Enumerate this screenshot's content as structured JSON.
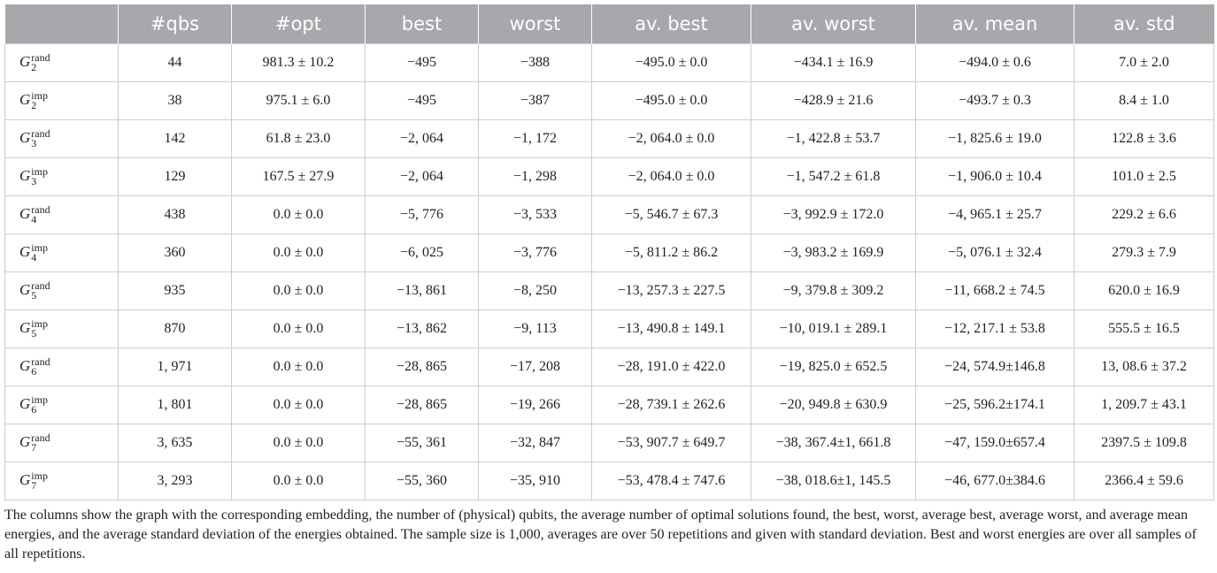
{
  "table": {
    "header": [
      "#qbs",
      "#opt",
      "best",
      "worst",
      "av. best",
      "av. worst",
      "av. mean",
      "av. std"
    ],
    "rows": [
      {
        "graph": {
          "base": "G",
          "sub": "2",
          "sup": "rand"
        },
        "cells": [
          "44",
          "981.3 ± 10.2",
          "−495",
          "−388",
          "−495.0 ± 0.0",
          "−434.1 ± 16.9",
          "−494.0 ± 0.6",
          "7.0 ± 2.0"
        ]
      },
      {
        "graph": {
          "base": "G",
          "sub": "2",
          "sup": "imp"
        },
        "cells": [
          "38",
          "975.1 ± 6.0",
          "−495",
          "−387",
          "−495.0 ± 0.0",
          "−428.9 ± 21.6",
          "−493.7 ± 0.3",
          "8.4 ± 1.0"
        ]
      },
      {
        "graph": {
          "base": "G",
          "sub": "3",
          "sup": "rand"
        },
        "cells": [
          "142",
          "61.8 ± 23.0",
          "−2, 064",
          "−1, 172",
          "−2, 064.0 ± 0.0",
          "−1, 422.8 ± 53.7",
          "−1, 825.6 ± 19.0",
          "122.8 ± 3.6"
        ]
      },
      {
        "graph": {
          "base": "G",
          "sub": "3",
          "sup": "imp"
        },
        "cells": [
          "129",
          "167.5 ± 27.9",
          "−2, 064",
          "−1, 298",
          "−2, 064.0 ± 0.0",
          "−1, 547.2 ± 61.8",
          "−1, 906.0 ± 10.4",
          "101.0 ± 2.5"
        ]
      },
      {
        "graph": {
          "base": "G",
          "sub": "4",
          "sup": "rand"
        },
        "cells": [
          "438",
          "0.0 ± 0.0",
          "−5, 776",
          "−3, 533",
          "−5, 546.7 ± 67.3",
          "−3, 992.9 ± 172.0",
          "−4, 965.1 ± 25.7",
          "229.2 ± 6.6"
        ]
      },
      {
        "graph": {
          "base": "G",
          "sub": "4",
          "sup": "imp"
        },
        "cells": [
          "360",
          "0.0 ± 0.0",
          "−6, 025",
          "−3, 776",
          "−5, 811.2 ± 86.2",
          "−3, 983.2 ± 169.9",
          "−5, 076.1 ± 32.4",
          "279.3 ± 7.9"
        ]
      },
      {
        "graph": {
          "base": "G",
          "sub": "5",
          "sup": "rand"
        },
        "cells": [
          "935",
          "0.0 ± 0.0",
          "−13, 861",
          "−8, 250",
          "−13, 257.3 ± 227.5",
          "−9, 379.8 ± 309.2",
          "−11, 668.2 ± 74.5",
          "620.0 ± 16.9"
        ]
      },
      {
        "graph": {
          "base": "G",
          "sub": "5",
          "sup": "imp"
        },
        "cells": [
          "870",
          "0.0 ± 0.0",
          "−13, 862",
          "−9, 113",
          "−13, 490.8 ± 149.1",
          "−10, 019.1 ± 289.1",
          "−12, 217.1 ± 53.8",
          "555.5 ± 16.5"
        ]
      },
      {
        "graph": {
          "base": "G",
          "sub": "6",
          "sup": "rand"
        },
        "cells": [
          "1, 971",
          "0.0 ± 0.0",
          "−28, 865",
          "−17, 208",
          "−28, 191.0 ± 422.0",
          "−19, 825.0 ± 652.5",
          "−24, 574.9±146.8",
          "13, 08.6 ± 37.2"
        ]
      },
      {
        "graph": {
          "base": "G",
          "sub": "6",
          "sup": "imp"
        },
        "cells": [
          "1, 801",
          "0.0 ± 0.0",
          "−28, 865",
          "−19, 266",
          "−28, 739.1 ± 262.6",
          "−20, 949.8 ± 630.9",
          "−25, 596.2±174.1",
          "1, 209.7 ± 43.1"
        ]
      },
      {
        "graph": {
          "base": "G",
          "sub": "7",
          "sup": "rand"
        },
        "cells": [
          "3, 635",
          "0.0 ± 0.0",
          "−55, 361",
          "−32, 847",
          "−53, 907.7 ± 649.7",
          "−38, 367.4±1, 661.8",
          "−47, 159.0±657.4",
          "2397.5 ± 109.8"
        ]
      },
      {
        "graph": {
          "base": "G",
          "sub": "7",
          "sup": "imp"
        },
        "cells": [
          "3, 293",
          "0.0 ± 0.0",
          "−55, 360",
          "−35, 910",
          "−53, 478.4 ± 747.6",
          "−38, 018.6±1, 145.5",
          "−46, 677.0±384.6",
          "2366.4 ± 59.6"
        ]
      }
    ],
    "caption": "The columns show the graph with the corresponding embedding, the number of (physical) qubits, the average number of optimal solutions found, the best, worst, average best, average worst, and average mean energies, and the average standard deviation of the energies obtained. The sample size is 1,000, averages are over 50 repetitions and given with standard deviation. Best and worst energies are over all samples of all repetitions."
  }
}
